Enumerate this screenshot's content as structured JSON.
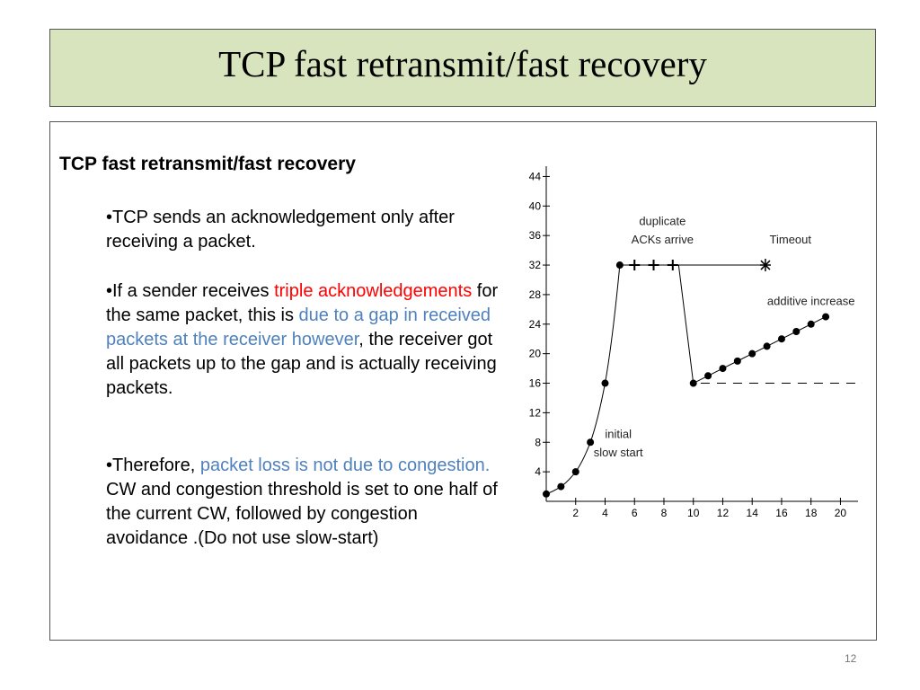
{
  "slide": {
    "title": "TCP fast retransmit/fast recovery",
    "heading": "TCP fast retransmit/fast recovery",
    "page_number": "12"
  },
  "bullets": [
    {
      "parts": [
        {
          "text": "•TCP sends an acknowledgement only after receiving a packet.",
          "color": "black"
        }
      ]
    },
    {
      "parts": [
        {
          "text": "•If a sender receives ",
          "color": "black"
        },
        {
          "text": "triple acknowledgements",
          "color": "red"
        },
        {
          "text": " for the same packet, this is ",
          "color": "black"
        },
        {
          "text": "due to a gap in received packets at the receiver however",
          "color": "blue"
        },
        {
          "text": ", the receiver got all packets up to the gap and is actually receiving packets.",
          "color": "black"
        }
      ]
    },
    {
      "parts": [
        {
          "text": "•Therefore, ",
          "color": "black"
        },
        {
          "text": "packet loss is not due to congestion.",
          "color": "blue"
        },
        {
          "text": " CW and congestion threshold is set to one half of the current CW, followed by  congestion avoidance .(Do not use slow-start)",
          "color": "black"
        }
      ]
    }
  ],
  "colors": {
    "red": "#ff0000",
    "blue": "#4f81bd",
    "black": "#000000",
    "title_bg": "#d7e4bd"
  },
  "chart_data": {
    "type": "line",
    "y_ticks": [
      "4",
      "8",
      "12",
      "16",
      "20",
      "24",
      "28",
      "32",
      "36",
      "40",
      "44"
    ],
    "x_ticks": [
      "2",
      "4",
      "6",
      "8",
      "10",
      "12",
      "14",
      "16",
      "18",
      "20"
    ],
    "xlim": [
      0,
      21.5
    ],
    "ylim": [
      0,
      46
    ],
    "series": [
      {
        "points": [
          [
            0,
            1
          ],
          [
            1,
            2
          ],
          [
            2,
            4
          ],
          [
            3,
            8
          ],
          [
            4,
            16
          ],
          [
            5,
            32
          ],
          [
            9,
            32
          ],
          [
            10,
            16
          ],
          [
            11,
            17
          ],
          [
            12,
            18
          ],
          [
            13,
            19
          ],
          [
            14,
            20
          ],
          [
            15,
            21
          ],
          [
            16,
            22
          ],
          [
            17,
            23
          ],
          [
            18,
            24
          ],
          [
            19,
            25
          ]
        ]
      }
    ],
    "dots": [
      [
        0,
        1
      ],
      [
        1,
        2
      ],
      [
        2,
        4
      ],
      [
        3,
        8
      ],
      [
        4,
        16
      ],
      [
        5,
        32
      ],
      [
        10,
        16
      ],
      [
        11,
        17
      ],
      [
        12,
        18
      ],
      [
        13,
        19
      ],
      [
        14,
        20
      ],
      [
        15,
        21
      ],
      [
        16,
        22
      ],
      [
        17,
        23
      ],
      [
        18,
        24
      ],
      [
        19,
        25
      ]
    ],
    "plus_markers": [
      [
        6,
        32
      ],
      [
        7.3,
        32
      ],
      [
        8.6,
        32
      ]
    ],
    "timeout_marker": [
      14.9,
      32
    ],
    "timeout_line": {
      "y": 32,
      "x_start": 9,
      "x_end": 14.9
    },
    "threshold_line": {
      "y": 16,
      "x_start": 10.5,
      "x_end": 21.5
    },
    "annotations": [
      {
        "text": "duplicate",
        "x": 7.9,
        "y": 37.4
      },
      {
        "text": "ACKs arrive",
        "x": 7.9,
        "y": 34.9
      },
      {
        "text": "Timeout",
        "x": 16.6,
        "y": 34.9
      },
      {
        "text": "additive increase",
        "x": 18,
        "y": 26.6
      },
      {
        "text": "initial",
        "x": 4.9,
        "y": 8.6
      },
      {
        "text": "slow start",
        "x": 4.9,
        "y": 6.1
      }
    ]
  }
}
